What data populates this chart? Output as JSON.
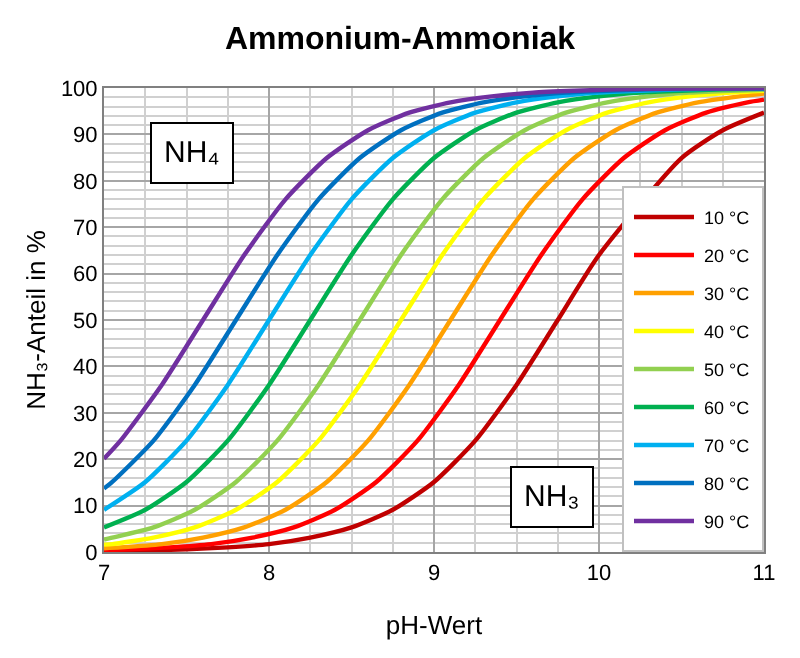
{
  "chart_data": {
    "type": "line",
    "title": "Ammonium-Ammoniak",
    "xlabel": "pH-Wert",
    "ylabel": "NH₃-Anteil in %",
    "annotations": [
      "NH₄",
      "NH₃"
    ],
    "xlim": [
      7,
      11
    ],
    "xticks": [
      7,
      8,
      9,
      10,
      11
    ],
    "ylim": [
      0,
      100
    ],
    "yticks": [
      0,
      10,
      20,
      30,
      40,
      50,
      60,
      70,
      80,
      90,
      100
    ],
    "grid": true,
    "legend": "right",
    "marker": "none",
    "line_style": "solid",
    "series": [
      {
        "name": "10 °C",
        "color": "#c00000",
        "x": [
          7,
          7.25,
          7.5,
          7.75,
          8,
          8.25,
          8.5,
          8.75,
          9,
          9.25,
          9.5,
          9.75,
          10,
          10.5,
          10.75,
          11
        ],
        "values": [
          0.2,
          0.3,
          0.6,
          1.0,
          1.7,
          3.1,
          5.3,
          9.1,
          15.1,
          24.0,
          36.0,
          50,
          64.0,
          84.9,
          90.9,
          94.7
        ]
      },
      {
        "name": "20 °C",
        "color": "#ff0000",
        "x": [
          7,
          7.15,
          7.4,
          7.65,
          7.9,
          8.15,
          8.4,
          8.65,
          8.9,
          9.15,
          9.4,
          9.65,
          9.9,
          10.15,
          10.4,
          10.65,
          10.9,
          11
        ],
        "values": [
          0.4,
          0.6,
          1.0,
          1.7,
          3.1,
          5.3,
          9.1,
          15.1,
          24.0,
          36.0,
          50,
          64.0,
          76.0,
          84.9,
          90.9,
          94.7,
          96.9,
          97.5
        ]
      },
      {
        "name": "30 °C",
        "color": "#ffa000",
        "x": [
          7,
          7.1,
          7.35,
          7.6,
          7.85,
          8.1,
          8.35,
          8.6,
          8.85,
          9.1,
          9.35,
          9.6,
          9.85,
          10.1,
          10.35,
          10.6,
          10.85,
          11
        ],
        "values": [
          0.8,
          1.0,
          1.7,
          3.1,
          5.3,
          9.1,
          15.1,
          24.0,
          36.0,
          50,
          64.0,
          76.0,
          84.9,
          90.9,
          94.7,
          96.9,
          98.2,
          98.8
        ]
      },
      {
        "name": "40 °C",
        "color": "#ffff00",
        "x": [
          7,
          7.05,
          7.3,
          7.55,
          7.8,
          8.05,
          8.3,
          8.55,
          8.8,
          9.05,
          9.3,
          9.55,
          9.8,
          10.05,
          10.3,
          10.55,
          10.8,
          11
        ],
        "values": [
          1.6,
          1.7,
          3.1,
          5.3,
          9.1,
          15.1,
          24.0,
          36.0,
          50,
          64.0,
          76.0,
          84.9,
          90.9,
          94.7,
          96.9,
          98.2,
          99.0,
          99.4
        ]
      },
      {
        "name": "50 °C",
        "color": "#92d050",
        "x": [
          7,
          7.05,
          7.3,
          7.55,
          7.8,
          8.05,
          8.3,
          8.55,
          8.8,
          9.05,
          9.3,
          9.55,
          9.8,
          10.05,
          10.3,
          10.55,
          10.8,
          11
        ],
        "values": [
          2.7,
          3.1,
          5.3,
          9.1,
          15.1,
          24.0,
          36.0,
          50,
          64.0,
          76.0,
          84.9,
          90.9,
          94.7,
          96.9,
          98.2,
          99.0,
          99.4,
          99.6
        ]
      },
      {
        "name": "60 °C",
        "color": "#00b050",
        "x": [
          7,
          7.25,
          7.5,
          7.75,
          8,
          8.25,
          8.5,
          8.75,
          9,
          9.25,
          9.5,
          9.75,
          10,
          10.25,
          10.5,
          10.75,
          11
        ],
        "values": [
          5.3,
          9.1,
          15.1,
          24.0,
          36.0,
          50,
          64.0,
          76.0,
          84.9,
          90.9,
          94.7,
          96.9,
          98.2,
          99.0,
          99.4,
          99.7,
          99.8
        ]
      },
      {
        "name": "70 °C",
        "color": "#00b0f0",
        "x": [
          7,
          7.25,
          7.5,
          7.75,
          8,
          8.25,
          8.5,
          8.75,
          9,
          9.25,
          9.5,
          9.75,
          10,
          10.25,
          10.5,
          10.75,
          11
        ],
        "values": [
          9.1,
          15.1,
          24.0,
          36.0,
          50,
          64.0,
          76.0,
          84.9,
          90.9,
          94.7,
          96.9,
          98.2,
          99.0,
          99.4,
          99.7,
          99.8,
          99.9
        ]
      },
      {
        "name": "80 °C",
        "color": "#0070c0",
        "x": [
          7,
          7.05,
          7.3,
          7.55,
          7.8,
          8.05,
          8.3,
          8.55,
          8.8,
          9.05,
          9.3,
          9.55,
          9.8,
          10.05,
          10.3,
          10.55,
          10.8,
          11
        ],
        "values": [
          13.7,
          15.1,
          24.0,
          36.0,
          50,
          64.0,
          76.0,
          84.9,
          90.9,
          94.7,
          96.9,
          98.2,
          99.0,
          99.4,
          99.7,
          99.8,
          99.9,
          99.9
        ]
      },
      {
        "name": "90 °C",
        "color": "#7030a0",
        "x": [
          7,
          7.1,
          7.35,
          7.6,
          7.85,
          8.1,
          8.35,
          8.6,
          8.85,
          9.1,
          9.35,
          9.6,
          9.85,
          10.1,
          10.35,
          10.6,
          10.85,
          11
        ],
        "values": [
          20.1,
          24.0,
          36.0,
          50,
          64.0,
          76.0,
          84.9,
          90.9,
          94.7,
          96.9,
          98.2,
          99.0,
          99.4,
          99.7,
          99.8,
          99.9,
          99.9,
          100
        ]
      }
    ]
  }
}
